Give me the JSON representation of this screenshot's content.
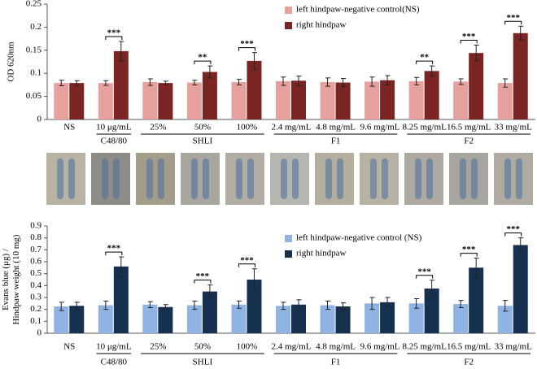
{
  "chart_data": [
    {
      "type": "bar",
      "ylabel": [
        "OD 620nm"
      ],
      "categories": [
        "NS",
        "10 μg/mL",
        "25%",
        "50%",
        "100%",
        "2.4 mg/mL",
        "4.8 mg/mL",
        "9.6 mg/mL",
        "8.25 mg/mL",
        "16.5 mg/mL",
        "33 mg/mL"
      ],
      "groups": [
        {
          "label": "C48/80",
          "start": 1,
          "end": 1
        },
        {
          "label": "SHLI",
          "start": 2,
          "end": 4
        },
        {
          "label": "F1",
          "start": 5,
          "end": 7
        },
        {
          "label": "F2",
          "start": 8,
          "end": 10
        }
      ],
      "series": [
        {
          "name": "left hindpaw-negative control(NS)",
          "color": "#e6a09e",
          "values": [
            0.079,
            0.079,
            0.081,
            0.08,
            0.081,
            0.083,
            0.081,
            0.082,
            0.083,
            0.082,
            0.079
          ],
          "errors": [
            0.006,
            0.005,
            0.007,
            0.005,
            0.006,
            0.009,
            0.009,
            0.01,
            0.008,
            0.006,
            0.009
          ]
        },
        {
          "name": "right hindpaw",
          "color": "#7a2424",
          "values": [
            0.079,
            0.148,
            0.079,
            0.103,
            0.127,
            0.084,
            0.08,
            0.085,
            0.105,
            0.144,
            0.187
          ],
          "errors": [
            0.005,
            0.021,
            0.004,
            0.013,
            0.018,
            0.01,
            0.009,
            0.01,
            0.011,
            0.017,
            0.015
          ]
        }
      ],
      "significance": [
        {
          "category": 1,
          "label": "***"
        },
        {
          "category": 3,
          "label": "**"
        },
        {
          "category": 4,
          "label": "***"
        },
        {
          "category": 8,
          "label": "**"
        },
        {
          "category": 9,
          "label": "***"
        },
        {
          "category": 10,
          "label": "***"
        }
      ],
      "ylim": [
        0,
        0.25
      ],
      "yticks": [
        0,
        0.05,
        0.1,
        0.15,
        0.2,
        0.25
      ],
      "legend": "top-center"
    },
    {
      "type": "bar",
      "ylabel": [
        "Evans blue (μg) /",
        "Hindpaw weight (10 mg)"
      ],
      "categories": [
        "NS",
        "10 μg/mL",
        "25%",
        "50%",
        "100%",
        "2.4 mg/mL",
        "4.8 mg/mL",
        "9.6 mg/mL",
        "8.25 mg/mL",
        "16.5 mg/mL",
        "33 mg/mL"
      ],
      "groups": [
        {
          "label": "C48/80",
          "start": 1,
          "end": 1
        },
        {
          "label": "SHLI",
          "start": 2,
          "end": 4
        },
        {
          "label": "F1",
          "start": 5,
          "end": 7
        },
        {
          "label": "F2",
          "start": 8,
          "end": 10
        }
      ],
      "series": [
        {
          "name": "left hindpaw-negative control (NS)",
          "color": "#8fb3e2",
          "values": [
            0.225,
            0.235,
            0.24,
            0.235,
            0.24,
            0.23,
            0.235,
            0.25,
            0.25,
            0.245,
            0.23
          ],
          "errors": [
            0.035,
            0.035,
            0.025,
            0.035,
            0.03,
            0.03,
            0.035,
            0.05,
            0.04,
            0.03,
            0.045
          ]
        },
        {
          "name": "right hindpaw",
          "color": "#16304f",
          "values": [
            0.23,
            0.56,
            0.22,
            0.35,
            0.45,
            0.24,
            0.225,
            0.26,
            0.375,
            0.55,
            0.74
          ],
          "errors": [
            0.03,
            0.08,
            0.02,
            0.055,
            0.09,
            0.04,
            0.03,
            0.04,
            0.07,
            0.08,
            0.06
          ]
        }
      ],
      "significance": [
        {
          "category": 1,
          "label": "***"
        },
        {
          "category": 3,
          "label": "***"
        },
        {
          "category": 4,
          "label": "***"
        },
        {
          "category": 8,
          "label": "***"
        },
        {
          "category": 9,
          "label": "***"
        },
        {
          "category": 10,
          "label": "***"
        }
      ],
      "ylim": [
        0,
        0.9
      ],
      "yticks": [
        0,
        0.1,
        0.2,
        0.3,
        0.4,
        0.5,
        0.6,
        0.7,
        0.8,
        0.9
      ],
      "legend": "top-center"
    }
  ]
}
